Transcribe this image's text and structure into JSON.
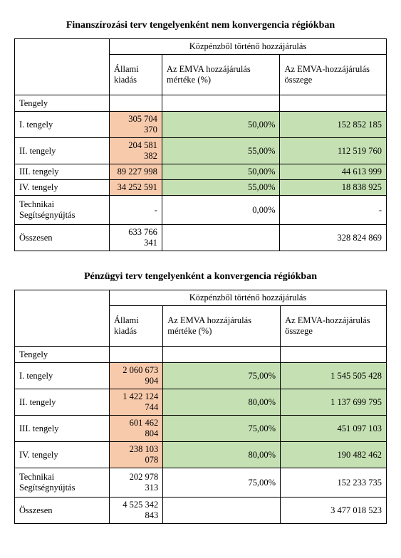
{
  "colors": {
    "orange": "#f7caac",
    "green": "#c5e0b3",
    "border": "#000000",
    "background": "#ffffff",
    "text": "#000000"
  },
  "typography": {
    "title_fontsize": 14,
    "cell_fontsize": 12.5,
    "font_family": "Times New Roman"
  },
  "common": {
    "group_header": "Közpénzből történő hozzájárulás",
    "col1": "Állami kiadás",
    "col2": "Az EMVA hozzájárulás mértéke (%)",
    "col3": "Az EMVA-hozzájárulás összege",
    "tengely_label": "Tengely",
    "rows": {
      "r1": "I. tengely",
      "r2": "II. tengely",
      "r3": "III. tengely",
      "r4": "IV. tengely",
      "tech": "Technikai Segítségnyújtás",
      "total": "Összesen"
    }
  },
  "table1": {
    "title": "Finanszírozási terv tengelyenként nem konvergencia régiókban",
    "data": {
      "r1": {
        "allami": "305 704 370",
        "pct": "50,00%",
        "emva": "152 852 185"
      },
      "r2": {
        "allami": "204 581 382",
        "pct": "55,00%",
        "emva": "112 519 760"
      },
      "r3": {
        "allami": "89 227 998",
        "pct": "50,00%",
        "emva": "44 613 999"
      },
      "r4": {
        "allami": "34 252 591",
        "pct": "55,00%",
        "emva": "18 838 925"
      },
      "tech": {
        "allami": "-",
        "pct": "0,00%",
        "emva": "-"
      },
      "total": {
        "allami": "633 766 341",
        "pct": "",
        "emva": "328 824 869"
      }
    },
    "styling": {
      "rows_colored": [
        "r1",
        "r2",
        "r3",
        "r4"
      ],
      "allami_fill": "orange",
      "pct_fill": "green",
      "emva_fill": "green",
      "tech_colored": false,
      "total_colored": false
    }
  },
  "table2": {
    "title": "Pénzügyi terv tengelyenként a konvergencia régiókban",
    "data": {
      "r1": {
        "allami": "2 060 673 904",
        "pct": "75,00%",
        "emva": "1 545 505 428"
      },
      "r2": {
        "allami": "1 422 124 744",
        "pct": "80,00%",
        "emva": "1 137 699 795"
      },
      "r3": {
        "allami": "601 462 804",
        "pct": "75,00%",
        "emva": "451 097 103"
      },
      "r4": {
        "allami": "238 103 078",
        "pct": "80,00%",
        "emva": "190 482 462"
      },
      "tech": {
        "allami": "202 978 313",
        "pct": "75,00%",
        "emva": "152 233 735"
      },
      "total": {
        "allami": "4 525 342 843",
        "pct": "",
        "emva": "3 477 018 523"
      }
    },
    "styling": {
      "rows_colored": [
        "r1",
        "r2",
        "r3",
        "r4"
      ],
      "allami_fill": "orange",
      "pct_fill": "green",
      "emva_fill": "green",
      "tech_colored": false,
      "total_colored": false
    }
  }
}
